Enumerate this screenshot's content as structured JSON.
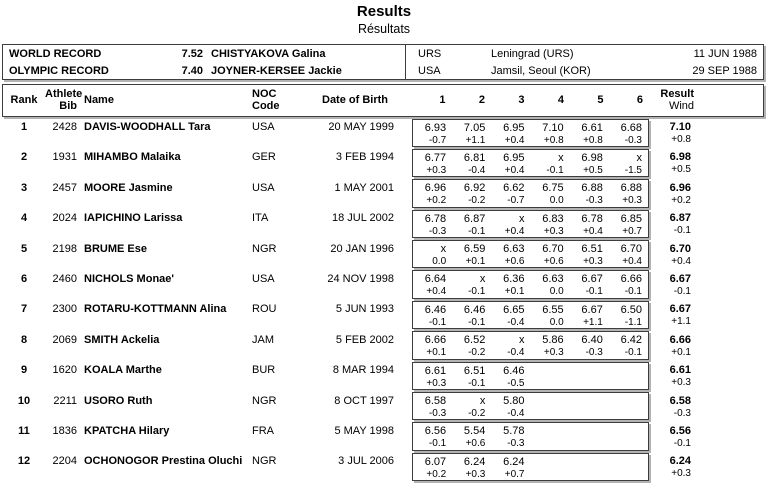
{
  "page": {
    "title": "Results",
    "subtitle": "Résultats"
  },
  "colors": {
    "border": "#3d3d3d",
    "border_shadow": "#b3b3b3",
    "text": "#000000",
    "background": "#ffffff"
  },
  "records": {
    "rows": [
      {
        "label": "WORLD RECORD",
        "mark": "7.52",
        "athlete": "CHISTYAKOVA Galina",
        "noc": "URS",
        "venue": "Leningrad (URS)",
        "date": "11 JUN 1988"
      },
      {
        "label": "OLYMPIC RECORD",
        "mark": "7.40",
        "athlete": "JOYNER-KERSEE Jackie",
        "noc": "USA",
        "venue": "Jamsil, Seoul (KOR)",
        "date": "29 SEP 1988"
      }
    ]
  },
  "results_table": {
    "headers": {
      "rank": "Rank",
      "athlete_line1": "Athlete",
      "athlete_line2": "Bib",
      "name": "Name",
      "noc_line1": "NOC",
      "noc_line2": "Code",
      "dob": "Date of Birth",
      "attempts": [
        "1",
        "2",
        "3",
        "4",
        "5",
        "6"
      ],
      "result_line1": "Result",
      "result_line2": "Wind"
    },
    "rows": [
      {
        "rank": "1",
        "bib": "2428",
        "name": "DAVIS-WOODHALL Tara",
        "noc": "USA",
        "dob": "20 MAY 1999",
        "marks": [
          "6.93",
          "7.05",
          "6.95",
          "7.10",
          "6.61",
          "6.68"
        ],
        "winds": [
          "-0.7",
          "+1.1",
          "+0.4",
          "+0.8",
          "+0.8",
          "-0.3"
        ],
        "result": "7.10",
        "result_wind": "+0.8"
      },
      {
        "rank": "2",
        "bib": "1931",
        "name": "MIHAMBO Malaika",
        "noc": "GER",
        "dob": "3 FEB 1994",
        "marks": [
          "6.77",
          "6.81",
          "6.95",
          "x",
          "6.98",
          "x"
        ],
        "winds": [
          "+0.3",
          "-0.4",
          "+0.4",
          "-0.1",
          "+0.5",
          "-1.5"
        ],
        "result": "6.98",
        "result_wind": "+0.5"
      },
      {
        "rank": "3",
        "bib": "2457",
        "name": "MOORE Jasmine",
        "noc": "USA",
        "dob": "1 MAY 2001",
        "marks": [
          "6.96",
          "6.92",
          "6.62",
          "6.75",
          "6.88",
          "6.88"
        ],
        "winds": [
          "+0.2",
          "-0.2",
          "-0.7",
          "0.0",
          "-0.3",
          "+0.3"
        ],
        "result": "6.96",
        "result_wind": "+0.2"
      },
      {
        "rank": "4",
        "bib": "2024",
        "name": "IAPICHINO Larissa",
        "noc": "ITA",
        "dob": "18 JUL 2002",
        "marks": [
          "6.78",
          "6.87",
          "x",
          "6.83",
          "6.78",
          "6.85"
        ],
        "winds": [
          "-0.3",
          "-0.1",
          "+0.4",
          "+0.3",
          "+0.4",
          "+0.7"
        ],
        "result": "6.87",
        "result_wind": "-0.1"
      },
      {
        "rank": "5",
        "bib": "2198",
        "name": "BRUME Ese",
        "noc": "NGR",
        "dob": "20 JAN 1996",
        "marks": [
          "x",
          "6.59",
          "6.63",
          "6.70",
          "6.51",
          "6.70"
        ],
        "winds": [
          "0.0",
          "+0.1",
          "+0.6",
          "+0.6",
          "+0.3",
          "+0.4"
        ],
        "result": "6.70",
        "result_wind": "+0.4"
      },
      {
        "rank": "6",
        "bib": "2460",
        "name": "NICHOLS Monae'",
        "noc": "USA",
        "dob": "24 NOV 1998",
        "marks": [
          "6.64",
          "x",
          "6.36",
          "6.63",
          "6.67",
          "6.66"
        ],
        "winds": [
          "+0.4",
          "-0.1",
          "+0.1",
          "0.0",
          "-0.1",
          "-0.1"
        ],
        "result": "6.67",
        "result_wind": "-0.1"
      },
      {
        "rank": "7",
        "bib": "2300",
        "name": "ROTARU-KOTTMANN Alina",
        "noc": "ROU",
        "dob": "5 JUN 1993",
        "marks": [
          "6.46",
          "6.46",
          "6.65",
          "6.55",
          "6.67",
          "6.50"
        ],
        "winds": [
          "-0.1",
          "-0.1",
          "-0.4",
          "0.0",
          "+1.1",
          "-1.1"
        ],
        "result": "6.67",
        "result_wind": "+1.1"
      },
      {
        "rank": "8",
        "bib": "2069",
        "name": "SMITH Ackelia",
        "noc": "JAM",
        "dob": "5 FEB 2002",
        "marks": [
          "6.66",
          "6.52",
          "x",
          "5.86",
          "6.40",
          "6.42"
        ],
        "winds": [
          "+0.1",
          "-0.2",
          "-0.4",
          "+0.3",
          "-0.3",
          "-0.1"
        ],
        "result": "6.66",
        "result_wind": "+0.1"
      },
      {
        "rank": "9",
        "bib": "1620",
        "name": "KOALA Marthe",
        "noc": "BUR",
        "dob": "8 MAR 1994",
        "marks": [
          "6.61",
          "6.51",
          "6.46",
          "",
          "",
          ""
        ],
        "winds": [
          "+0.3",
          "-0.1",
          "-0.5",
          "",
          "",
          ""
        ],
        "result": "6.61",
        "result_wind": "+0.3"
      },
      {
        "rank": "10",
        "bib": "2211",
        "name": "USORO Ruth",
        "noc": "NGR",
        "dob": "8 OCT 1997",
        "marks": [
          "6.58",
          "x",
          "5.80",
          "",
          "",
          ""
        ],
        "winds": [
          "-0.3",
          "-0.2",
          "-0.4",
          "",
          "",
          ""
        ],
        "result": "6.58",
        "result_wind": "-0.3"
      },
      {
        "rank": "11",
        "bib": "1836",
        "name": "KPATCHA Hilary",
        "noc": "FRA",
        "dob": "5 MAY 1998",
        "marks": [
          "6.56",
          "5.54",
          "5.78",
          "",
          "",
          ""
        ],
        "winds": [
          "-0.1",
          "+0.6",
          "-0.3",
          "",
          "",
          ""
        ],
        "result": "6.56",
        "result_wind": "-0.1"
      },
      {
        "rank": "12",
        "bib": "2204",
        "name": "OCHONOGOR Prestina Oluchi",
        "noc": "NGR",
        "dob": "3 JUL 2006",
        "marks": [
          "6.07",
          "6.24",
          "6.24",
          "",
          "",
          ""
        ],
        "winds": [
          "+0.2",
          "+0.3",
          "+0.7",
          "",
          "",
          ""
        ],
        "result": "6.24",
        "result_wind": "+0.3"
      }
    ]
  }
}
